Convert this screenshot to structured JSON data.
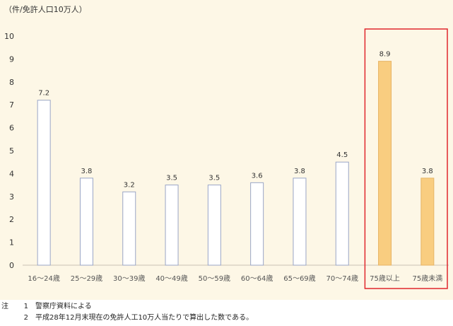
{
  "unit_label": "（件/免許人口10万人）",
  "colors": {
    "background": "#fdf7e6",
    "bar_default_fill": "#ffffff",
    "bar_default_stroke": "#9aa6c6",
    "bar_highlight_fill": "#f9cd80",
    "bar_highlight_stroke": "#e6b466",
    "highlight_box": "#e0262b"
  },
  "chart_data": {
    "type": "bar",
    "categories": [
      "16～24歳",
      "25～29歳",
      "30～39歳",
      "40～49歳",
      "50～59歳",
      "60～64歳",
      "65～69歳",
      "70～74歳",
      "75歳以上",
      "75歳未満"
    ],
    "values": [
      7.2,
      3.8,
      3.2,
      3.5,
      3.5,
      3.6,
      3.8,
      4.5,
      8.9,
      3.8
    ],
    "value_labels": [
      "7.2",
      "3.8",
      "3.2",
      "3.5",
      "3.5",
      "3.6",
      "3.8",
      "4.5",
      "8.9",
      "3.8"
    ],
    "highlighted": [
      false,
      false,
      false,
      false,
      false,
      false,
      false,
      false,
      true,
      true
    ],
    "yticks": [
      "0",
      "1",
      "2",
      "3",
      "4",
      "5",
      "6",
      "7",
      "8",
      "9",
      "10"
    ],
    "ylim": [
      0,
      10
    ],
    "grid": false,
    "legend": "none"
  },
  "notes": [
    {
      "head": "注",
      "num": "1",
      "text": "警察庁資料による"
    },
    {
      "head": "",
      "num": "2",
      "text": "平成28年12月末現在の免許人工10万人当たりで算出した数である。"
    }
  ]
}
